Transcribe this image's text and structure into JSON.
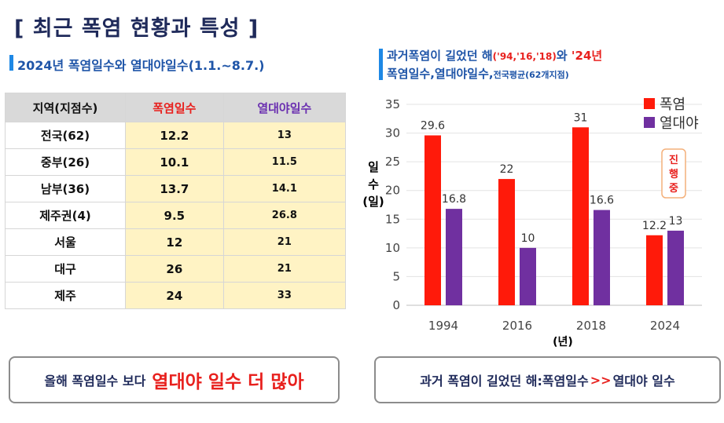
{
  "title": "[ 최근 폭염 현황과 특성 ]",
  "left_subtitle": "2024년 폭염일수와 열대야일수(1.1.~8.7.)",
  "table": {
    "headers": [
      "지역(지점수)",
      "폭염일수",
      "열대야일수"
    ],
    "rows": [
      {
        "region": "전국(62)",
        "heat": "12.2",
        "tropical": "13"
      },
      {
        "region": "중부(26)",
        "heat": "10.1",
        "tropical": "11.5"
      },
      {
        "region": "남부(36)",
        "heat": "13.7",
        "tropical": "14.1"
      },
      {
        "region": "제주권(4)",
        "heat": "9.5",
        "tropical": "26.8"
      },
      {
        "region": "서울",
        "heat": "12",
        "tropical": "21"
      },
      {
        "region": "대구",
        "heat": "26",
        "tropical": "21"
      },
      {
        "region": "제주",
        "heat": "24",
        "tropical": "33"
      }
    ]
  },
  "left_callout": {
    "prefix": "올해 폭염일수 보다",
    "emphasis": "열대야 일수 더 많아"
  },
  "right_subtitle": {
    "part1": "과거폭염이 길었던 해",
    "years": "('94,'16,'18)",
    "part2": "와",
    "year24": "'24년",
    "part3": "폭염일수,열대야일수,",
    "part4": "전국평균(62개지점)"
  },
  "right_callout": {
    "left": "과거 폭염이 길었던 해:폭염일수",
    "arrow": ">>",
    "right": "열대야 일수"
  },
  "chart_data": {
    "type": "bar",
    "categories": [
      "1994",
      "2016",
      "2018",
      "2024"
    ],
    "series": [
      {
        "name": "폭염",
        "color": "#ff1a0a",
        "values": [
          29.6,
          22,
          31,
          12.2
        ]
      },
      {
        "name": "열대야",
        "color": "#7030a0",
        "values": [
          16.8,
          10,
          16.6,
          13
        ]
      }
    ],
    "ylim": [
      0,
      35
    ],
    "yticks": [
      0,
      5,
      10,
      15,
      20,
      25,
      30,
      35
    ],
    "ylabel": "일수(일)",
    "xlabel": "(년)",
    "annotation": "진행중",
    "legend": "top-right"
  }
}
